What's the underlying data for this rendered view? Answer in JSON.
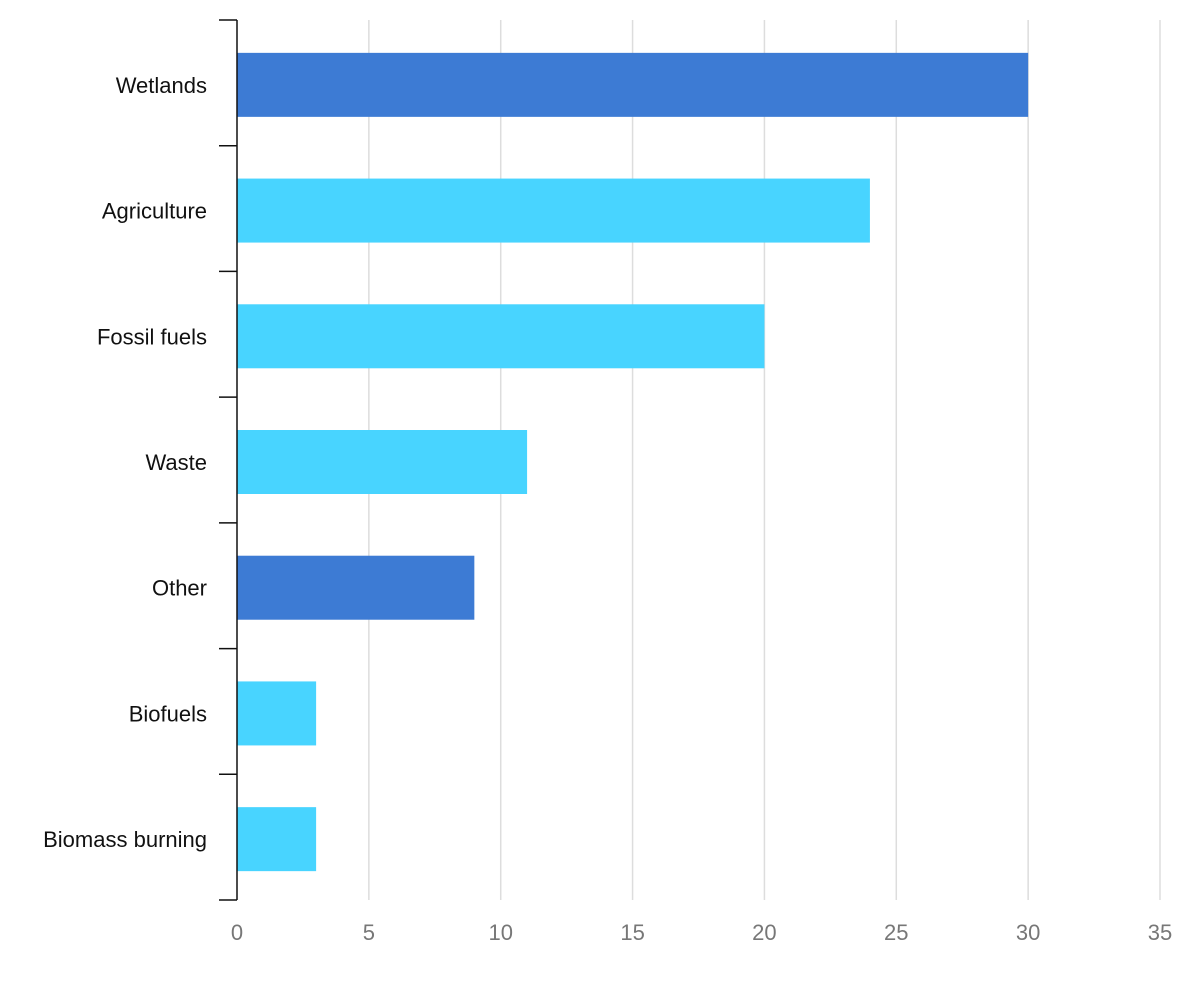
{
  "chart_data": {
    "type": "bar",
    "orientation": "horizontal",
    "title": "",
    "xlabel": "",
    "ylabel": "",
    "categories": [
      "Wetlands",
      "Agriculture",
      "Fossil fuels",
      "Waste",
      "Other",
      "Biofuels",
      "Biomass burning"
    ],
    "values": [
      30,
      24,
      20,
      11,
      9,
      3,
      3
    ],
    "colors": [
      "#3d7bd4",
      "#48d4ff",
      "#48d4ff",
      "#48d4ff",
      "#3d7bd4",
      "#48d4ff",
      "#48d4ff"
    ],
    "xlim": [
      0,
      35
    ],
    "xticks": [
      "0",
      "5",
      "10",
      "15",
      "20",
      "25",
      "30",
      "35"
    ],
    "grid": true,
    "legend": "none"
  }
}
